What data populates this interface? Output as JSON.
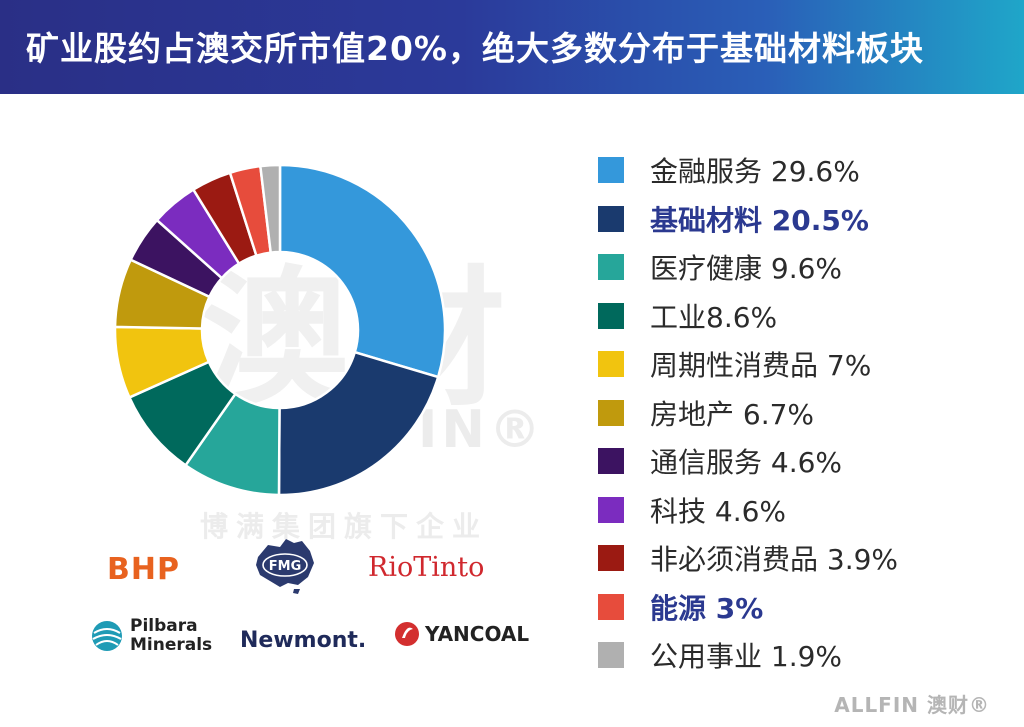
{
  "header": {
    "title": "矿业股约占澳交所市值20%，绝大多数分布于基础材料板块"
  },
  "watermark": {
    "cn": "澳财",
    "en": "ALLFIN®",
    "sub": "博满集团旗下企业"
  },
  "chart_data": {
    "type": "pie",
    "donut": true,
    "title": "矿业股约占澳交所市值20%，绝大多数分布于基础材料板块",
    "legend_position": "right",
    "slices": [
      {
        "label": "金融服务 29.6%",
        "name": "金融服务",
        "value": 29.6,
        "color": "#3498db",
        "highlight": false
      },
      {
        "label": "基础材料 20.5%",
        "name": "基础材料",
        "value": 20.5,
        "color": "#1a3a6e",
        "highlight": true
      },
      {
        "label": "医疗健康 9.6%",
        "name": "医疗健康",
        "value": 9.6,
        "color": "#26a69a",
        "highlight": false
      },
      {
        "label": "工业8.6%",
        "name": "工业",
        "value": 8.6,
        "color": "#00695c",
        "highlight": false
      },
      {
        "label": "周期性消费品 7%",
        "name": "周期性消费品",
        "value": 7,
        "color": "#f1c40f",
        "highlight": false
      },
      {
        "label": "房地产 6.7%",
        "name": "房地产",
        "value": 6.7,
        "color": "#c09a0d",
        "highlight": false
      },
      {
        "label": "通信服务 4.6%",
        "name": "通信服务",
        "value": 4.6,
        "color": "#3c1361",
        "highlight": false
      },
      {
        "label": "科技 4.6%",
        "name": "科技",
        "value": 4.6,
        "color": "#7b2cbf",
        "highlight": false
      },
      {
        "label": "非必须消费品 3.9%",
        "name": "非必须消费品",
        "value": 3.9,
        "color": "#9b1a12",
        "highlight": false
      },
      {
        "label": "能源 3%",
        "name": "能源",
        "value": 3,
        "color": "#e74c3c",
        "highlight": true
      },
      {
        "label": "公用事业 1.9%",
        "name": "公用事业",
        "value": 1.9,
        "color": "#b0b0b0",
        "highlight": false
      }
    ]
  },
  "logos": {
    "bhp": "BHP",
    "fmg": "FMG",
    "riotinto": "RioTinto",
    "pilbara_line1": "Pilbara",
    "pilbara_line2": "Minerals",
    "newmont": "Newmont.",
    "yancoal": "YANCOAL"
  },
  "footer": {
    "brand": "ALLFIN 澳财®"
  },
  "colors": {
    "header_start": "#2a2f86",
    "header_end": "#1fa6c9",
    "highlight_text": "#2b3990"
  }
}
